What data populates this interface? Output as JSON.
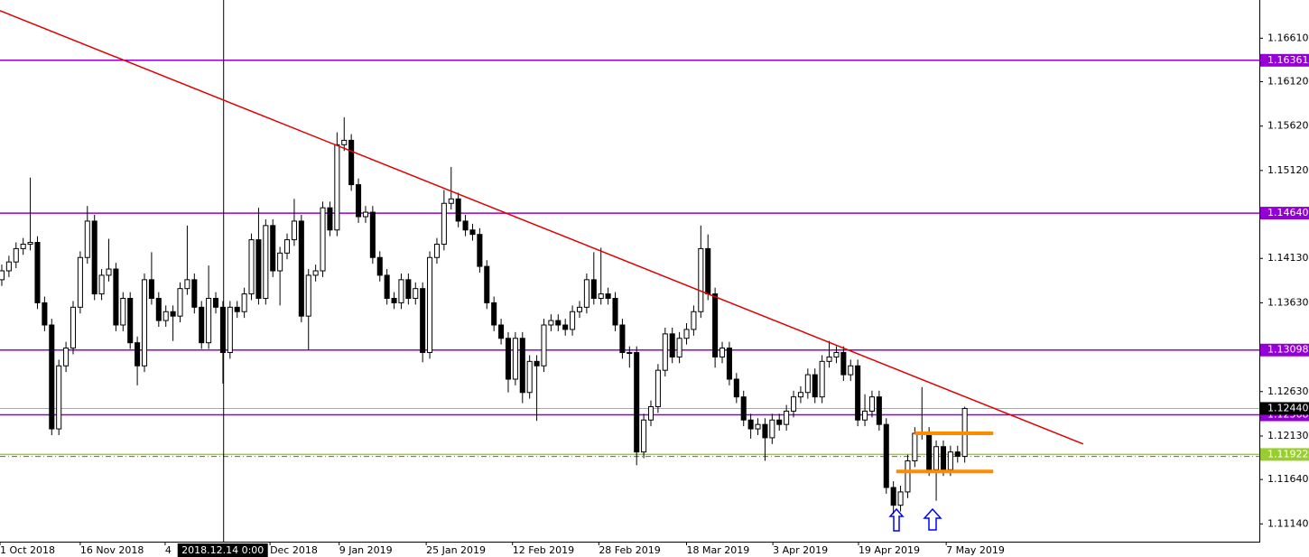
{
  "chart_data": {
    "type": "candlestick",
    "xlim": [
      -0.25,
      176.3
    ],
    "ylim": [
      1.1094,
      1.1704
    ],
    "xticks": [
      {
        "value": -0.25,
        "label": "1 Oct 2018"
      },
      {
        "value": 11,
        "label": "16 Nov 2018"
      },
      {
        "value": 22.9,
        "label": "4"
      },
      {
        "value": 37.6,
        "label": "Dec 2018"
      },
      {
        "value": 47.3,
        "label": "9 Jan 2019"
      },
      {
        "value": 59.5,
        "label": "25 Jan 2019"
      },
      {
        "value": 71.6,
        "label": "12 Feb 2019"
      },
      {
        "value": 83.7,
        "label": "28 Feb 2019"
      },
      {
        "value": 96,
        "label": "18 Mar 2019"
      },
      {
        "value": 108.1,
        "label": "3 Apr 2019"
      },
      {
        "value": 120.1,
        "label": "19 Apr 2019"
      },
      {
        "value": 132.4,
        "label": "7 May 2019"
      }
    ],
    "crosshair": {
      "value": 31.1,
      "label": "2018.12.14 0:00"
    },
    "yticks": [
      {
        "value": 1.1661,
        "label": "1.16610"
      },
      {
        "value": 1.1612,
        "label": "1.16120"
      },
      {
        "value": 1.1562,
        "label": "1.15620"
      },
      {
        "value": 1.1512,
        "label": "1.15120"
      },
      {
        "value": 1.1413,
        "label": "1.14130"
      },
      {
        "value": 1.1363,
        "label": "1.13630"
      },
      {
        "value": 1.1263,
        "label": "1.12630"
      },
      {
        "value": 1.1213,
        "label": "1.12130"
      },
      {
        "value": 1.1164,
        "label": "1.11640"
      },
      {
        "value": 1.1114,
        "label": "1.11140"
      }
    ],
    "open": [
      1.1389,
      1.1399,
      1.1409,
      1.1424,
      1.1429,
      1.1431,
      1.1363,
      1.1338,
      1.1221,
      1.1292,
      1.1312,
      1.1358,
      1.1414,
      1.1455,
      1.1373,
      1.1394,
      1.1401,
      1.1338,
      1.1368,
      1.1318,
      1.1292,
      1.1389,
      1.1368,
      1.1343,
      1.1353,
      1.1348,
      1.1379,
      1.1389,
      1.1358,
      1.1318,
      1.1368,
      1.1358,
      1.1307,
      1.1358,
      1.1353,
      1.1373,
      1.1434,
      1.1368,
      1.145,
      1.1399,
      1.1419,
      1.1434,
      1.1455,
      1.1348,
      1.1394,
      1.1399,
      1.147,
      1.1445,
      1.1541,
      1.1546,
      1.1496,
      1.146,
      1.1465,
      1.1414,
      1.1394,
      1.1368,
      1.1363,
      1.1389,
      1.1368,
      1.1379,
      1.1307,
      1.1414,
      1.1429,
      1.1475,
      1.148,
      1.1455,
      1.1445,
      1.144,
      1.1404,
      1.1363,
      1.1338,
      1.1323,
      1.1277,
      1.1323,
      1.1262,
      1.1297,
      1.1292,
      1.1338,
      1.1343,
      1.1338,
      1.1333,
      1.1353,
      1.1358,
      1.1389,
      1.1368,
      1.1373,
      1.1368,
      1.1338,
      1.1307,
      1.1307,
      1.1195,
      1.1231,
      1.1246,
      1.1287,
      1.1328,
      1.1302,
      1.1323,
      1.1333,
      1.1353,
      1.1424,
      1.1373,
      1.1302,
      1.1312,
      1.1277,
      1.1257,
      1.1231,
      1.1221,
      1.1226,
      1.1211,
      1.1231,
      1.1226,
      1.1241,
      1.1257,
      1.1262,
      1.1282,
      1.1257,
      1.1297,
      1.1302,
      1.1307,
      1.1282,
      1.1292,
      1.1231,
      1.1241,
      1.1257,
      1.1226,
      1.1155,
      1.1135,
      1.115,
      1.1185,
      1.1216,
      1.1216,
      1.1175,
      1.1201,
      1.1175,
      1.1195,
      1.119
    ],
    "high": [
      1.1406,
      1.1416,
      1.1431,
      1.1436,
      1.1504,
      1.1438,
      1.137,
      1.1345,
      1.1299,
      1.1319,
      1.1365,
      1.1421,
      1.1472,
      1.1462,
      1.1401,
      1.1435,
      1.1408,
      1.1375,
      1.1375,
      1.1325,
      1.1396,
      1.142,
      1.1375,
      1.136,
      1.136,
      1.1386,
      1.145,
      1.1396,
      1.1365,
      1.1405,
      1.1375,
      1.1365,
      1.1365,
      1.1365,
      1.138,
      1.1441,
      1.147,
      1.1457,
      1.1457,
      1.1426,
      1.1441,
      1.148,
      1.1462,
      1.1401,
      1.1406,
      1.1477,
      1.1477,
      1.1555,
      1.1572,
      1.1553,
      1.1503,
      1.1472,
      1.1472,
      1.1421,
      1.1401,
      1.1375,
      1.1396,
      1.1396,
      1.1386,
      1.1386,
      1.1421,
      1.1436,
      1.149,
      1.1516,
      1.1487,
      1.1462,
      1.1452,
      1.1447,
      1.1411,
      1.137,
      1.1345,
      1.133,
      1.133,
      1.133,
      1.1304,
      1.1304,
      1.1345,
      1.135,
      1.135,
      1.1345,
      1.136,
      1.1365,
      1.1396,
      1.142,
      1.1425,
      1.138,
      1.1375,
      1.1345,
      1.1314,
      1.1314,
      1.1238,
      1.1253,
      1.1294,
      1.1335,
      1.1335,
      1.133,
      1.134,
      1.136,
      1.145,
      1.144,
      1.138,
      1.1319,
      1.1319,
      1.1284,
      1.1264,
      1.1238,
      1.1233,
      1.1233,
      1.1238,
      1.1238,
      1.1248,
      1.1264,
      1.1269,
      1.1289,
      1.1289,
      1.1304,
      1.132,
      1.1314,
      1.1314,
      1.1299,
      1.1299,
      1.126,
      1.1264,
      1.1264,
      1.1233,
      1.1162,
      1.1157,
      1.1192,
      1.1223,
      1.1268,
      1.1223,
      1.1208,
      1.1208,
      1.1202,
      1.1202,
      1.1246
    ],
    "low": [
      1.1382,
      1.1392,
      1.1402,
      1.1417,
      1.1422,
      1.1356,
      1.1331,
      1.1214,
      1.1214,
      1.1285,
      1.1305,
      1.1351,
      1.1407,
      1.1366,
      1.1366,
      1.1387,
      1.1331,
      1.1331,
      1.1311,
      1.127,
      1.1285,
      1.1361,
      1.1336,
      1.1336,
      1.132,
      1.1341,
      1.1372,
      1.1351,
      1.1311,
      1.1311,
      1.1351,
      1.1272,
      1.13,
      1.1346,
      1.1346,
      1.1366,
      1.1361,
      1.1361,
      1.1392,
      1.136,
      1.1412,
      1.1427,
      1.1341,
      1.131,
      1.1387,
      1.1392,
      1.1438,
      1.1438,
      1.1534,
      1.1489,
      1.1453,
      1.1453,
      1.1407,
      1.1387,
      1.1361,
      1.1356,
      1.1356,
      1.1361,
      1.1361,
      1.1296,
      1.13,
      1.1407,
      1.1422,
      1.1468,
      1.1448,
      1.1438,
      1.1433,
      1.1397,
      1.1356,
      1.1331,
      1.1316,
      1.1262,
      1.127,
      1.125,
      1.1255,
      1.123,
      1.1285,
      1.1331,
      1.1331,
      1.1326,
      1.1326,
      1.1346,
      1.1351,
      1.1361,
      1.1361,
      1.1361,
      1.1331,
      1.13,
      1.129,
      1.118,
      1.1188,
      1.1224,
      1.1239,
      1.128,
      1.1295,
      1.1295,
      1.1316,
      1.1326,
      1.1346,
      1.1366,
      1.129,
      1.1295,
      1.127,
      1.125,
      1.1224,
      1.121,
      1.1214,
      1.1185,
      1.1204,
      1.1219,
      1.1219,
      1.1234,
      1.125,
      1.1255,
      1.125,
      1.125,
      1.129,
      1.1295,
      1.1275,
      1.1275,
      1.1224,
      1.1224,
      1.1234,
      1.1219,
      1.1148,
      1.1125,
      1.1128,
      1.1143,
      1.1178,
      1.1209,
      1.1168,
      1.114,
      1.1168,
      1.1168,
      1.1183,
      1.1183
    ],
    "close": [
      1.1399,
      1.1409,
      1.1424,
      1.1429,
      1.1431,
      1.1363,
      1.1338,
      1.1221,
      1.1292,
      1.1312,
      1.1358,
      1.1414,
      1.1455,
      1.1373,
      1.1394,
      1.1401,
      1.1338,
      1.1368,
      1.1318,
      1.1292,
      1.1389,
      1.1368,
      1.1343,
      1.1353,
      1.1348,
      1.1379,
      1.1389,
      1.1358,
      1.1318,
      1.1368,
      1.1358,
      1.1307,
      1.1358,
      1.1353,
      1.1373,
      1.1434,
      1.1368,
      1.145,
      1.1399,
      1.1419,
      1.1434,
      1.1455,
      1.1348,
      1.1394,
      1.1399,
      1.147,
      1.1445,
      1.1541,
      1.1546,
      1.1496,
      1.146,
      1.1465,
      1.1414,
      1.1394,
      1.1368,
      1.1363,
      1.1389,
      1.1368,
      1.1379,
      1.1307,
      1.1414,
      1.1429,
      1.1475,
      1.148,
      1.1455,
      1.1445,
      1.144,
      1.1404,
      1.1363,
      1.1338,
      1.1323,
      1.1277,
      1.1323,
      1.1262,
      1.1297,
      1.1292,
      1.1338,
      1.1343,
      1.1338,
      1.1333,
      1.1353,
      1.1358,
      1.1389,
      1.1368,
      1.1373,
      1.1368,
      1.1338,
      1.1307,
      1.1307,
      1.1195,
      1.1231,
      1.1246,
      1.1287,
      1.1328,
      1.1302,
      1.1323,
      1.1333,
      1.1353,
      1.1424,
      1.1373,
      1.1302,
      1.1312,
      1.1277,
      1.1257,
      1.1231,
      1.1221,
      1.1226,
      1.1211,
      1.1231,
      1.1226,
      1.1241,
      1.1257,
      1.1262,
      1.1282,
      1.1257,
      1.1297,
      1.1302,
      1.1307,
      1.1282,
      1.1292,
      1.1231,
      1.1241,
      1.1257,
      1.1226,
      1.1155,
      1.1135,
      1.115,
      1.1185,
      1.1216,
      1.1216,
      1.1175,
      1.1201,
      1.1175,
      1.1195,
      1.119,
      1.1244
    ],
    "up_color": "#ffffff",
    "down_color": "#000000",
    "edge_color": "#000000",
    "levels": [
      {
        "value": 1.16361,
        "color": "#9400d3"
      },
      {
        "value": 1.1464,
        "label": "1.14640",
        "color": "#9400d3"
      },
      {
        "value": 1.13098,
        "color": "#9400d3"
      },
      {
        "value": 1.12368,
        "color": "#9400d3"
      },
      {
        "value": 1.1244,
        "label": "1.12440",
        "color": "#a9a9a9",
        "label_color": "#000000"
      },
      {
        "value": 1.11922,
        "color": "#9acd32"
      }
    ],
    "dashed_line": {
      "value": 1.119,
      "color": "#a0522d"
    },
    "trendline": {
      "x": [
        -0.25,
        151.6
      ],
      "y": [
        1.1692,
        1.1204
      ],
      "color": "#e00000"
    },
    "boxes": [
      {
        "x": [
          128,
          139
        ],
        "value": 1.1216
      },
      {
        "x": [
          125.4,
          139
        ],
        "value": 1.1173
      }
    ],
    "box_color": "#ff8c00"
  }
}
